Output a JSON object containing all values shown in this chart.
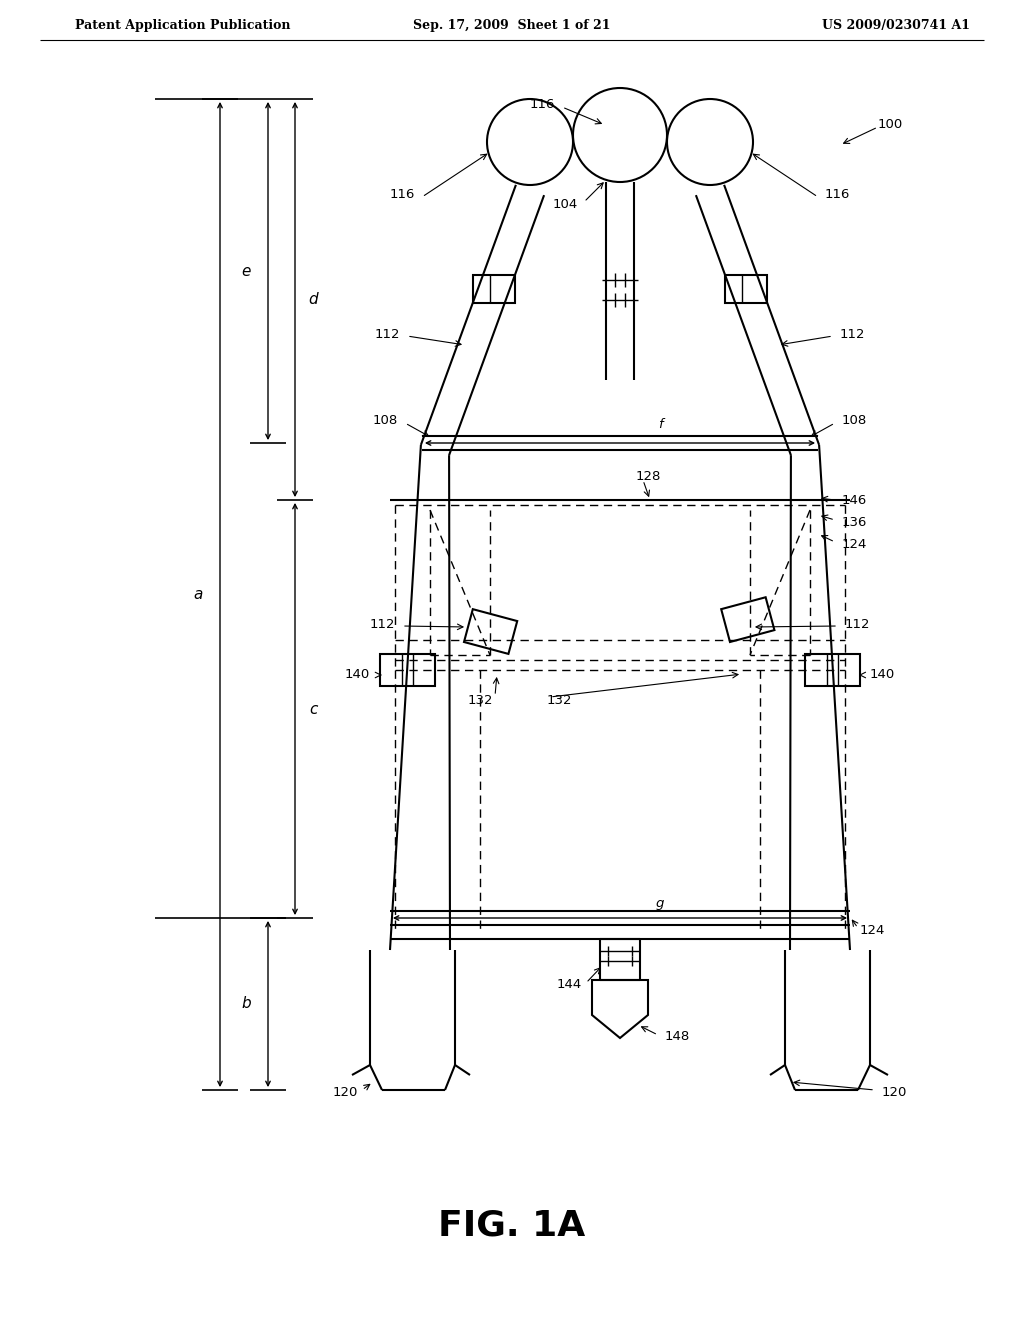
{
  "bg_color": "#ffffff",
  "title": "FIG. 1A",
  "header": {
    "left": "Patent Application Publication",
    "center": "Sep. 17, 2009  Sheet 1 of 21",
    "right": "US 2009/0230741 A1"
  }
}
